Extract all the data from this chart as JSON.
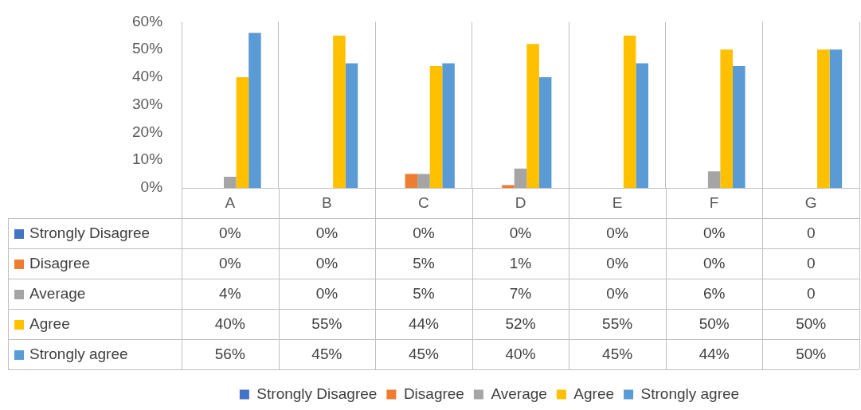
{
  "chart_data": {
    "type": "bar",
    "categories": [
      "A",
      "B",
      "C",
      "D",
      "E",
      "F",
      "G"
    ],
    "series": [
      {
        "name": "Strongly Disagree",
        "color": "#4472c4",
        "values": [
          0,
          0,
          0,
          0,
          0,
          0,
          0
        ],
        "value_labels": [
          "0%",
          "0%",
          "0%",
          "0%",
          "0%",
          "0%",
          "0"
        ]
      },
      {
        "name": "Disagree",
        "color": "#ed7d31",
        "values": [
          0,
          0,
          5,
          1,
          0,
          0,
          0
        ],
        "value_labels": [
          "0%",
          "0%",
          "5%",
          "1%",
          "0%",
          "0%",
          "0"
        ]
      },
      {
        "name": "Average",
        "color": "#a5a5a5",
        "values": [
          4,
          0,
          5,
          7,
          0,
          6,
          0
        ],
        "value_labels": [
          "4%",
          "0%",
          "5%",
          "7%",
          "0%",
          "6%",
          "0"
        ]
      },
      {
        "name": "Agree",
        "color": "#ffc000",
        "values": [
          40,
          55,
          44,
          52,
          55,
          50,
          50
        ],
        "value_labels": [
          "40%",
          "55%",
          "44%",
          "52%",
          "55%",
          "50%",
          "50%"
        ]
      },
      {
        "name": "Strongly agree",
        "color": "#5b9bd5",
        "values": [
          56,
          45,
          45,
          40,
          45,
          44,
          50
        ],
        "value_labels": [
          "56%",
          "45%",
          "45%",
          "40%",
          "45%",
          "44%",
          "50%"
        ]
      }
    ],
    "ylim": [
      0,
      60
    ],
    "yticks": [
      {
        "value": 0,
        "label": "0%"
      },
      {
        "value": 10,
        "label": "10%"
      },
      {
        "value": 20,
        "label": "20%"
      },
      {
        "value": 30,
        "label": "30%"
      },
      {
        "value": 40,
        "label": "40%"
      },
      {
        "value": 50,
        "label": "50%"
      },
      {
        "value": 60,
        "label": "60%"
      }
    ],
    "grid": "x",
    "legend": "bottom"
  }
}
